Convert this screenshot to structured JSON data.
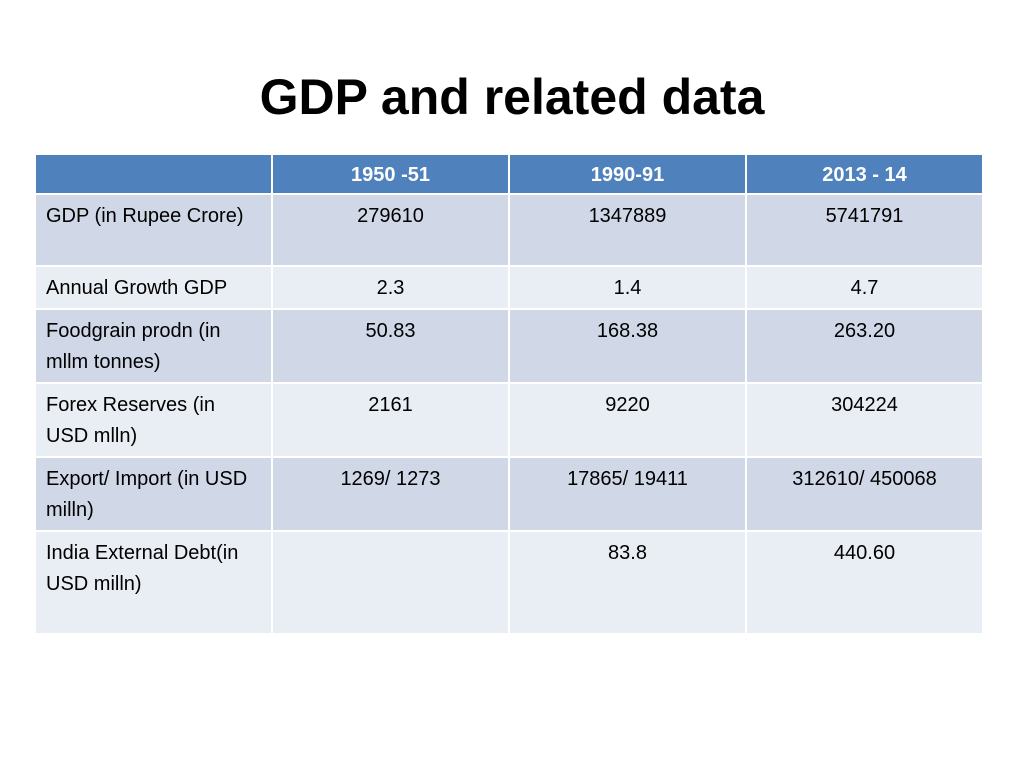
{
  "title": "GDP and related data",
  "table": {
    "headers": [
      "",
      "1950 -51",
      "1990-91",
      "2013 - 14"
    ],
    "rows": [
      {
        "label": "GDP (in Rupee Crore)",
        "values": [
          "279610",
          "1347889",
          "5741791"
        ]
      },
      {
        "label": "Annual Growth GDP",
        "values": [
          "2.3",
          "1.4",
          "4.7"
        ]
      },
      {
        "label": "Foodgrain prodn (in mllm tonnes)",
        "values": [
          "50.83",
          "168.38",
          "263.20"
        ]
      },
      {
        "label": "Forex Reserves (in USD mlln)",
        "values": [
          "2161",
          "9220",
          "304224"
        ]
      },
      {
        "label": "Export/ Import (in USD milln)",
        "values": [
          "1269/ 1273",
          "17865/ 19411",
          "312610/ 450068"
        ]
      },
      {
        "label": "India External Debt(in USD milln)",
        "values": [
          "",
          "83.8",
          "440.60"
        ]
      }
    ]
  },
  "colors": {
    "header_bg": "#4f81bd",
    "row_band_1": "#d0d8e8",
    "row_band_2": "#e9edf4"
  }
}
